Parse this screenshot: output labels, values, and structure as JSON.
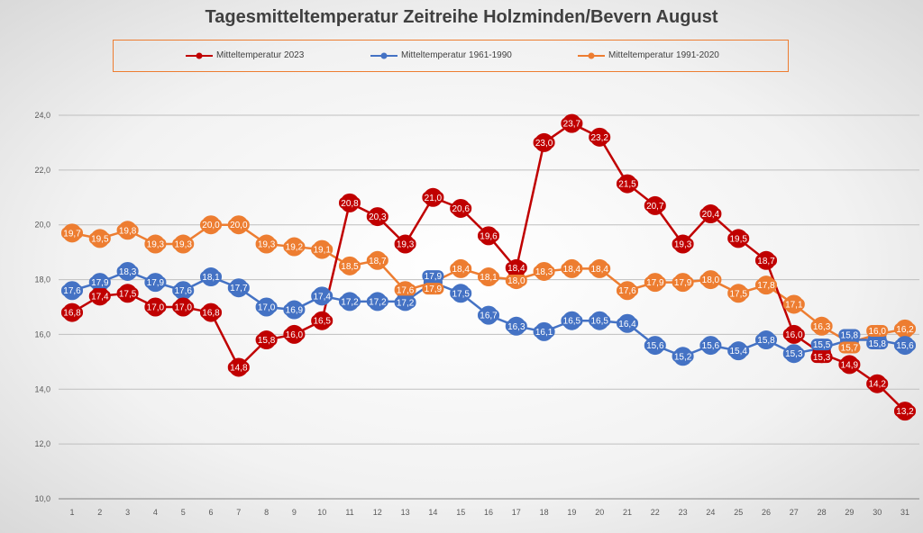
{
  "chart_data": {
    "type": "line",
    "title": "Tagesmitteltemperatur Zeitreihe Holzminden/Bevern August",
    "x": [
      1,
      2,
      3,
      4,
      5,
      6,
      7,
      8,
      9,
      10,
      11,
      12,
      13,
      14,
      15,
      16,
      17,
      18,
      19,
      20,
      21,
      22,
      23,
      24,
      25,
      26,
      27,
      28,
      29,
      30,
      31
    ],
    "ylim": [
      10,
      24
    ],
    "yticks": [
      "10,0",
      "12,0",
      "14,0",
      "16,0",
      "18,0",
      "20,0",
      "22,0",
      "24,0"
    ],
    "grid": true,
    "legend_position": "top",
    "series": [
      {
        "name": "Mitteltemperatur 2023",
        "color": "#c00000",
        "values": [
          16.8,
          17.4,
          17.5,
          17.0,
          17.0,
          16.8,
          14.8,
          15.8,
          16.0,
          16.5,
          20.8,
          20.3,
          19.3,
          21.0,
          20.6,
          19.6,
          18.4,
          23.0,
          23.7,
          23.2,
          21.5,
          20.7,
          19.3,
          20.4,
          19.5,
          18.7,
          16.0,
          15.3,
          14.9,
          14.2,
          13.2
        ]
      },
      {
        "name": "Mitteltemperatur 1961-1990",
        "color": "#4472c4",
        "values": [
          17.6,
          17.9,
          18.3,
          17.9,
          17.6,
          18.1,
          17.7,
          17.0,
          16.9,
          17.4,
          17.2,
          17.2,
          17.2,
          17.9,
          17.5,
          16.7,
          16.3,
          16.1,
          16.5,
          16.5,
          16.4,
          15.6,
          15.2,
          15.6,
          15.4,
          15.8,
          15.3,
          15.5,
          15.8,
          15.8,
          15.6
        ]
      },
      {
        "name": "Mitteltemperatur 1991-2020",
        "color": "#ed7d31",
        "values": [
          19.7,
          19.5,
          19.8,
          19.3,
          19.3,
          20.0,
          20.0,
          19.3,
          19.2,
          19.1,
          18.5,
          18.7,
          17.6,
          17.9,
          18.4,
          18.1,
          18.0,
          18.3,
          18.4,
          18.4,
          17.6,
          17.9,
          17.9,
          18.0,
          17.5,
          17.8,
          17.1,
          16.3,
          15.7,
          16.0,
          16.2
        ]
      }
    ]
  }
}
